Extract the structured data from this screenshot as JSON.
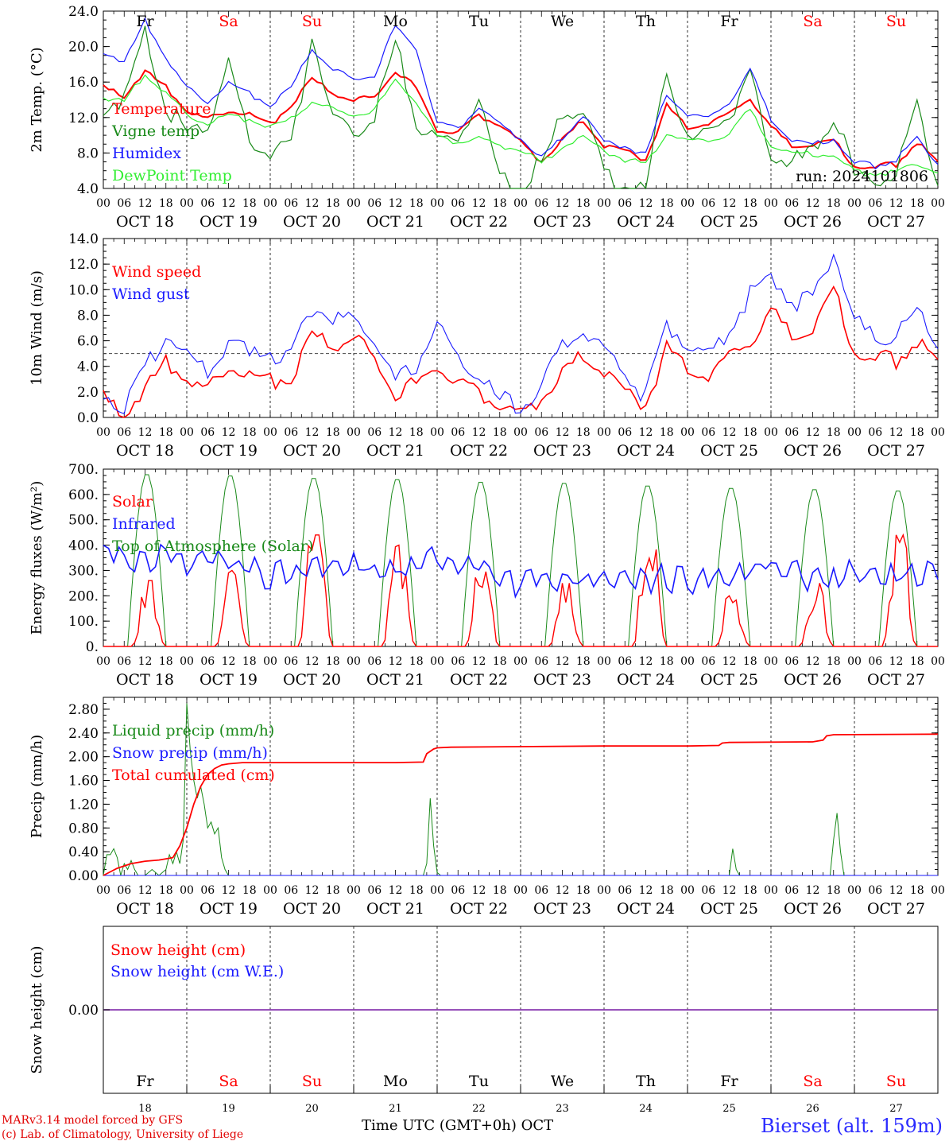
{
  "run_label": "run: 2024101806",
  "footer": {
    "model_line": "MARv3.14 model forced by GFS",
    "copyright_line": "(c) Lab. of Climatology, University of Liege",
    "time_axis_title": "Time UTC (GMT+0h) OCT",
    "station": "Bierset (alt. 159m)"
  },
  "hour_ticks": [
    "00",
    "06",
    "12",
    "18"
  ],
  "date_labels": [
    "OCT 18",
    "OCT 19",
    "OCT 20",
    "OCT 21",
    "OCT 22",
    "OCT 23",
    "OCT 24",
    "OCT 25",
    "OCT 26",
    "OCT 27"
  ],
  "weekdays": [
    "Fr",
    "Sa",
    "Su",
    "Mo",
    "Tu",
    "We",
    "Th",
    "Fr",
    "Sa",
    "Su"
  ],
  "weekend_flags": [
    false,
    true,
    true,
    false,
    false,
    false,
    false,
    false,
    true,
    true
  ],
  "day_numbers": [
    "18",
    "19",
    "20",
    "21",
    "22",
    "23",
    "24",
    "25",
    "26",
    "27"
  ],
  "colors": {
    "red": "#ff0000",
    "green": "#1a8a1a",
    "blue": "#1a1aff",
    "lightgreen": "#33ee33",
    "weekend": "#ff0000",
    "purple": "#8a3ab0"
  },
  "chart_data": [
    {
      "type": "line",
      "ylabel": "2m Temp. (°C)",
      "ylim": [
        4,
        24
      ],
      "yticks": [
        "4.0",
        "8.0",
        "12.0",
        "16.0",
        "20.0",
        "24.0"
      ],
      "x_unit": "hours since Oct 18 00 UTC",
      "series": [
        {
          "name": "Temperature",
          "color": "red",
          "x": [
            0,
            6,
            12,
            18,
            24,
            30,
            36,
            42,
            48,
            54,
            60,
            66,
            72,
            78,
            84,
            90,
            96,
            102,
            108,
            114,
            120,
            126,
            132,
            138,
            144,
            150,
            156,
            162,
            168,
            174,
            180,
            186,
            192,
            198,
            204,
            210,
            216,
            222,
            228,
            234,
            240
          ],
          "values": [
            15.5,
            14.8,
            17.5,
            15.5,
            13.0,
            12.0,
            13.0,
            12.5,
            11.5,
            13.5,
            16.5,
            15.0,
            14.0,
            14.5,
            17.5,
            15.5,
            10.8,
            10.5,
            12.5,
            11.5,
            9.5,
            7.2,
            9.5,
            12.0,
            9.0,
            8.5,
            7.5,
            13.5,
            11.2,
            11.5,
            12.5,
            14.5,
            11.0,
            9.0,
            9.0,
            9.5,
            6.7,
            6.5,
            7.0,
            9.5,
            7.0
          ]
        },
        {
          "name": "Vigne temp",
          "color": "green",
          "x": [
            0,
            6,
            12,
            18,
            24,
            30,
            36,
            42,
            48,
            54,
            60,
            66,
            72,
            78,
            84,
            90,
            96,
            102,
            108,
            114,
            120,
            126,
            132,
            138,
            144,
            150,
            156,
            162,
            168,
            174,
            180,
            186,
            192,
            198,
            204,
            210,
            216,
            222,
            228,
            234,
            240
          ],
          "values": [
            14.0,
            14.5,
            22.5,
            14.0,
            11.0,
            12.0,
            18.5,
            10.0,
            8.5,
            9.0,
            22.0,
            12.0,
            11.0,
            13.0,
            21.0,
            12.0,
            10.5,
            10.0,
            15.0,
            5.5,
            4.5,
            7.5,
            12.5,
            14.0,
            6.0,
            5.0,
            4.5,
            18.5,
            9.5,
            11.0,
            13.0,
            17.0,
            9.0,
            7.5,
            8.5,
            13.0,
            6.0,
            5.5,
            6.0,
            14.5,
            5.5
          ]
        },
        {
          "name": "Humidex",
          "color": "blue",
          "x": [
            0,
            6,
            12,
            18,
            24,
            30,
            36,
            42,
            48,
            54,
            60,
            66,
            72,
            78,
            84,
            90,
            96,
            102,
            108,
            114,
            120,
            126,
            132,
            138,
            144,
            150,
            156,
            162,
            168,
            174,
            180,
            186,
            192,
            198,
            204,
            210,
            216,
            222,
            228,
            234,
            240
          ],
          "values": [
            19.8,
            18.5,
            23.0,
            19.0,
            15.5,
            14.0,
            16.0,
            15.0,
            13.5,
            15.5,
            20.0,
            17.5,
            16.5,
            17.0,
            22.5,
            20.0,
            11.5,
            11.0,
            13.5,
            11.5,
            9.8,
            7.5,
            10.0,
            12.5,
            9.5,
            9.0,
            8.0,
            15.0,
            12.5,
            12.0,
            14.0,
            17.5,
            12.0,
            9.5,
            9.0,
            9.8,
            7.0,
            6.8,
            7.5,
            9.8,
            7.0
          ]
        },
        {
          "name": "DewPoint Temp",
          "color": "lightgreen",
          "x": [
            0,
            6,
            12,
            18,
            24,
            30,
            36,
            42,
            48,
            54,
            60,
            66,
            72,
            78,
            84,
            90,
            96,
            102,
            108,
            114,
            120,
            126,
            132,
            138,
            144,
            150,
            156,
            162,
            168,
            174,
            180,
            186,
            192,
            198,
            204,
            210,
            216,
            222,
            228,
            234,
            240
          ],
          "values": [
            14.5,
            14.0,
            17.0,
            15.0,
            12.5,
            11.5,
            12.5,
            12.0,
            11.0,
            12.0,
            14.0,
            13.0,
            12.5,
            13.0,
            16.5,
            14.0,
            10.0,
            9.5,
            10.0,
            9.0,
            8.5,
            7.0,
            9.0,
            10.0,
            8.5,
            7.5,
            7.0,
            10.5,
            9.5,
            9.5,
            10.5,
            13.0,
            9.0,
            8.0,
            8.0,
            8.0,
            6.0,
            6.0,
            6.0,
            7.0,
            6.0
          ]
        }
      ]
    },
    {
      "type": "line",
      "ylabel": "10m Wind (m/s)",
      "ylim": [
        0,
        14
      ],
      "yticks": [
        "0.0",
        "2.0",
        "4.0",
        "6.0",
        "8.0",
        "10.0",
        "12.0",
        "14.0"
      ],
      "threshold": 5,
      "series": [
        {
          "name": "Wind speed",
          "color": "red",
          "x": [
            0,
            6,
            12,
            18,
            24,
            30,
            36,
            42,
            48,
            54,
            60,
            66,
            72,
            78,
            84,
            90,
            96,
            102,
            108,
            114,
            120,
            126,
            132,
            138,
            144,
            150,
            156,
            162,
            168,
            174,
            180,
            186,
            192,
            198,
            204,
            210,
            216,
            222,
            228,
            234,
            240
          ],
          "values": [
            1.8,
            0.8,
            2.8,
            4.5,
            3.5,
            2.5,
            4.5,
            3.5,
            3.5,
            3.2,
            6.8,
            6.0,
            6.5,
            5.0,
            2.2,
            3.0,
            4.5,
            3.0,
            2.5,
            1.5,
            0.8,
            1.8,
            3.5,
            5.5,
            4.0,
            2.5,
            1.5,
            5.8,
            4.5,
            3.5,
            5.0,
            6.5,
            8.5,
            6.8,
            7.0,
            10.2,
            5.5,
            4.8,
            5.0,
            6.5,
            4.4
          ]
        },
        {
          "name": "Wind gust",
          "color": "blue",
          "x": [
            0,
            6,
            12,
            18,
            24,
            30,
            36,
            42,
            48,
            54,
            60,
            66,
            72,
            78,
            84,
            90,
            96,
            102,
            108,
            114,
            120,
            126,
            132,
            138,
            144,
            150,
            156,
            162,
            168,
            174,
            180,
            186,
            192,
            198,
            204,
            210,
            216,
            222,
            228,
            234,
            240
          ],
          "values": [
            2.5,
            1.2,
            4.2,
            7.0,
            5.2,
            3.8,
            6.5,
            5.2,
            5.5,
            5.0,
            9.0,
            8.2,
            8.0,
            6.5,
            3.2,
            4.5,
            7.5,
            4.8,
            3.5,
            1.8,
            1.2,
            2.8,
            6.0,
            7.5,
            5.5,
            3.8,
            2.0,
            7.8,
            6.0,
            5.0,
            7.5,
            10.0,
            11.5,
            9.5,
            9.5,
            13.5,
            8.0,
            6.5,
            6.8,
            8.5,
            6.3
          ]
        }
      ]
    },
    {
      "type": "line",
      "ylabel": "Energy fluxes (W/m²)",
      "ylim": [
        0,
        700
      ],
      "yticks": [
        "0.",
        "100.",
        "200.",
        "300.",
        "400.",
        "500.",
        "600.",
        "700."
      ],
      "series": [
        {
          "name": "Solar",
          "color": "red",
          "peaks_x": [
            13,
            37,
            61,
            85,
            109,
            133,
            157,
            181,
            205,
            229
          ],
          "peaks": [
            260,
            300,
            440,
            400,
            360,
            250,
            440,
            200,
            250,
            440
          ]
        },
        {
          "name": "Infrared",
          "color": "blue",
          "x": [
            0,
            12,
            24,
            36,
            48,
            60,
            72,
            84,
            96,
            108,
            120,
            132,
            144,
            156,
            168,
            180,
            192,
            204,
            216,
            228,
            240
          ],
          "values": [
            375,
            380,
            370,
            360,
            300,
            350,
            340,
            320,
            370,
            350,
            270,
            300,
            290,
            300,
            290,
            300,
            360,
            280,
            320,
            300,
            320
          ]
        },
        {
          "name": "Top of Atmosphere (Solar)",
          "color": "green",
          "peaks_x": [
            12.5,
            36.5,
            60.5,
            84.5,
            108.5,
            132.5,
            156.5,
            180.5,
            204.5,
            228.5
          ],
          "peaks": [
            685,
            680,
            670,
            665,
            655,
            650,
            640,
            630,
            625,
            620
          ]
        }
      ]
    },
    {
      "type": "line",
      "ylabel": "Precip (mm/h)",
      "ylim": [
        0,
        3.0
      ],
      "yticks": [
        "0.00",
        "0.40",
        "0.80",
        "1.20",
        "1.60",
        "2.00",
        "2.40",
        "2.80"
      ],
      "series": [
        {
          "name": "Liquid precip (mm/h)",
          "color": "green",
          "x": [
            0,
            1,
            2,
            3,
            4,
            5,
            6,
            7,
            8,
            9,
            10,
            12,
            14,
            16,
            18,
            19,
            20,
            21,
            22,
            23,
            24,
            25,
            26,
            27,
            28,
            29,
            30,
            31,
            32,
            33,
            34,
            35,
            36,
            38,
            40,
            92,
            93,
            94,
            95,
            96,
            97,
            98,
            180,
            181,
            182,
            183,
            184,
            209,
            210,
            211,
            212,
            213,
            214,
            240
          ],
          "values": [
            0,
            0.35,
            0.35,
            0.45,
            0.3,
            0,
            0.2,
            0.1,
            0.25,
            0.1,
            0,
            0,
            0.1,
            0,
            0.1,
            0.35,
            0.2,
            0.4,
            0.2,
            0.6,
            2.9,
            2.1,
            1.6,
            1.3,
            1.5,
            1.2,
            0.8,
            0.9,
            0.7,
            0.8,
            0.3,
            0.1,
            0,
            0,
            0,
            0,
            0.2,
            1.3,
            0.5,
            0.05,
            0,
            0,
            0,
            0.45,
            0.1,
            0,
            0,
            0,
            0.6,
            1.05,
            0.4,
            0,
            0,
            0
          ]
        },
        {
          "name": "Snow precip (mm/h)",
          "color": "blue",
          "x": [
            0,
            240
          ],
          "values": [
            0,
            0
          ]
        },
        {
          "name": "Total cumulated (cm)",
          "color": "red",
          "x": [
            0,
            4,
            8,
            12,
            16,
            20,
            22,
            24,
            26,
            28,
            30,
            32,
            34,
            36,
            40,
            48,
            60,
            72,
            84,
            92,
            93,
            95,
            96,
            100,
            120,
            144,
            168,
            177,
            178,
            180,
            204,
            207,
            208,
            210,
            240
          ],
          "values": [
            0,
            0.12,
            0.2,
            0.24,
            0.26,
            0.3,
            0.5,
            0.8,
            1.2,
            1.5,
            1.7,
            1.8,
            1.86,
            1.88,
            1.9,
            1.9,
            1.9,
            1.9,
            1.9,
            1.91,
            2.05,
            2.13,
            2.15,
            2.16,
            2.17,
            2.18,
            2.18,
            2.19,
            2.23,
            2.24,
            2.25,
            2.28,
            2.35,
            2.37,
            2.38
          ]
        }
      ]
    },
    {
      "type": "line",
      "ylabel": "Snow height (cm)",
      "yticks": [
        "0.00"
      ],
      "series": [
        {
          "name": "Snow height (cm)",
          "color": "red",
          "x": [
            0,
            240
          ],
          "values": [
            0,
            0
          ]
        },
        {
          "name": "Snow height (cm W.E.)",
          "color": "blue",
          "x": [
            0,
            240
          ],
          "values": [
            0,
            0
          ]
        }
      ]
    }
  ]
}
